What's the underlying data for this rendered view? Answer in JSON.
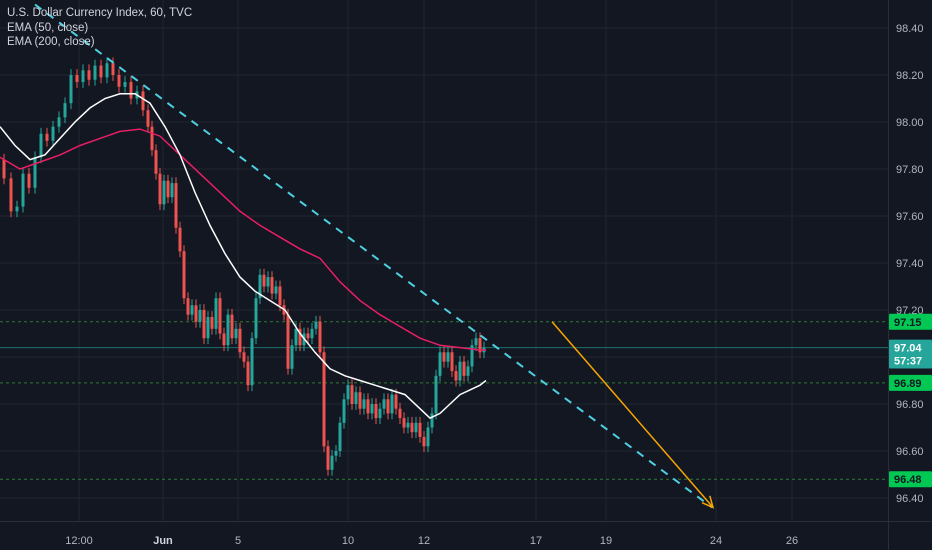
{
  "chart_data": {
    "type": "line",
    "title": "U.S. Dollar Currency Index, 60, TVC",
    "indicators": [
      {
        "name": "EMA (50, close)",
        "color": "#ffffff"
      },
      {
        "name": "EMA (200, close)",
        "color": "#e91e63"
      }
    ],
    "x_ticks": [
      "12:00",
      "Jun",
      "5",
      "10",
      "12",
      "17",
      "19",
      "24",
      "26"
    ],
    "y_ticks": [
      "98.40",
      "98.20",
      "98.00",
      "97.80",
      "97.60",
      "97.40",
      "97.20",
      "97.00",
      "96.80",
      "96.60",
      "96.40"
    ],
    "ylim": [
      96.34,
      98.46
    ],
    "price_markers": [
      {
        "label": "97.15",
        "value": 97.15,
        "bg": "#00c853",
        "fg": "#131722",
        "line": "dashed-green"
      },
      {
        "label": "97.04",
        "value": 97.04,
        "bg": "#26a69a",
        "fg": "#ffffff",
        "line": "solid-teal"
      },
      {
        "label": "57:37",
        "value": 96.985,
        "bg": "#26a69a",
        "fg": "#ffffff",
        "line": "none"
      },
      {
        "label": "96.89",
        "value": 96.89,
        "bg": "#00c853",
        "fg": "#131722",
        "line": "dashed-green"
      },
      {
        "label": "96.48",
        "value": 96.48,
        "bg": "#00c853",
        "fg": "#131722",
        "line": "dashed-green"
      }
    ],
    "price_path": [
      [
        0,
        97.84
      ],
      [
        8,
        97.76
      ],
      [
        14,
        97.62
      ],
      [
        20,
        97.64
      ],
      [
        26,
        97.78
      ],
      [
        32,
        97.72
      ],
      [
        38,
        97.85
      ],
      [
        44,
        97.95
      ],
      [
        50,
        97.92
      ],
      [
        56,
        97.98
      ],
      [
        62,
        98.02
      ],
      [
        68,
        98.08
      ],
      [
        74,
        98.2
      ],
      [
        80,
        98.17
      ],
      [
        86,
        98.22
      ],
      [
        92,
        98.18
      ],
      [
        98,
        98.24
      ],
      [
        104,
        98.19
      ],
      [
        110,
        98.25
      ],
      [
        116,
        98.2
      ],
      [
        122,
        98.15
      ],
      [
        128,
        98.17
      ],
      [
        134,
        98.1
      ],
      [
        140,
        98.13
      ],
      [
        146,
        98.05
      ],
      [
        150,
        97.98
      ],
      [
        154,
        97.88
      ],
      [
        158,
        97.78
      ],
      [
        162,
        97.65
      ],
      [
        166,
        97.75
      ],
      [
        170,
        97.68
      ],
      [
        174,
        97.74
      ],
      [
        178,
        97.55
      ],
      [
        182,
        97.45
      ],
      [
        186,
        97.25
      ],
      [
        190,
        97.18
      ],
      [
        194,
        97.22
      ],
      [
        198,
        97.15
      ],
      [
        202,
        97.2
      ],
      [
        206,
        97.08
      ],
      [
        210,
        97.17
      ],
      [
        214,
        97.12
      ],
      [
        218,
        97.25
      ],
      [
        222,
        97.1
      ],
      [
        226,
        97.05
      ],
      [
        230,
        97.18
      ],
      [
        234,
        97.08
      ],
      [
        238,
        97.12
      ],
      [
        242,
        97.02
      ],
      [
        246,
        96.98
      ],
      [
        250,
        96.88
      ],
      [
        254,
        97.08
      ],
      [
        258,
        97.25
      ],
      [
        262,
        97.35
      ],
      [
        266,
        97.3
      ],
      [
        270,
        97.34
      ],
      [
        274,
        97.27
      ],
      [
        278,
        97.3
      ],
      [
        282,
        97.22
      ],
      [
        286,
        97.18
      ],
      [
        290,
        96.95
      ],
      [
        294,
        97.05
      ],
      [
        298,
        97.12
      ],
      [
        302,
        97.05
      ],
      [
        306,
        97.1
      ],
      [
        310,
        97.08
      ],
      [
        314,
        97.12
      ],
      [
        318,
        97.15
      ],
      [
        322,
        97.02
      ],
      [
        326,
        96.62
      ],
      [
        330,
        96.52
      ],
      [
        334,
        96.58
      ],
      [
        338,
        96.6
      ],
      [
        342,
        96.72
      ],
      [
        346,
        96.82
      ],
      [
        350,
        96.88
      ],
      [
        354,
        96.8
      ],
      [
        358,
        96.85
      ],
      [
        362,
        96.78
      ],
      [
        366,
        96.82
      ],
      [
        370,
        96.76
      ],
      [
        374,
        96.8
      ],
      [
        378,
        96.74
      ],
      [
        382,
        96.78
      ],
      [
        386,
        96.82
      ],
      [
        390,
        96.76
      ],
      [
        394,
        96.84
      ],
      [
        398,
        96.78
      ],
      [
        402,
        96.74
      ],
      [
        406,
        96.7
      ],
      [
        410,
        96.72
      ],
      [
        414,
        96.68
      ],
      [
        418,
        96.72
      ],
      [
        422,
        96.66
      ],
      [
        426,
        96.62
      ],
      [
        430,
        96.7
      ],
      [
        434,
        96.76
      ],
      [
        438,
        96.92
      ],
      [
        442,
        97.02
      ],
      [
        446,
        96.98
      ],
      [
        450,
        97.02
      ],
      [
        454,
        96.94
      ],
      [
        458,
        96.9
      ],
      [
        462,
        96.98
      ],
      [
        466,
        96.92
      ],
      [
        470,
        96.96
      ],
      [
        474,
        97.05
      ],
      [
        478,
        97.08
      ],
      [
        482,
        97.02
      ],
      [
        486,
        97.04
      ]
    ],
    "ema50_path": [
      [
        0,
        97.98
      ],
      [
        15,
        97.9
      ],
      [
        30,
        97.84
      ],
      [
        45,
        97.86
      ],
      [
        60,
        97.93
      ],
      [
        75,
        98.0
      ],
      [
        90,
        98.06
      ],
      [
        105,
        98.1
      ],
      [
        120,
        98.12
      ],
      [
        135,
        98.12
      ],
      [
        150,
        98.08
      ],
      [
        165,
        97.98
      ],
      [
        180,
        97.86
      ],
      [
        195,
        97.7
      ],
      [
        210,
        97.56
      ],
      [
        225,
        97.44
      ],
      [
        240,
        97.34
      ],
      [
        255,
        97.28
      ],
      [
        270,
        97.24
      ],
      [
        285,
        97.2
      ],
      [
        300,
        97.1
      ],
      [
        315,
        97.02
      ],
      [
        330,
        96.95
      ],
      [
        345,
        96.92
      ],
      [
        360,
        96.9
      ],
      [
        375,
        96.88
      ],
      [
        390,
        96.86
      ],
      [
        405,
        96.84
      ],
      [
        420,
        96.78
      ],
      [
        430,
        96.74
      ],
      [
        440,
        96.76
      ],
      [
        450,
        96.8
      ],
      [
        460,
        96.84
      ],
      [
        470,
        96.86
      ],
      [
        480,
        96.88
      ],
      [
        486,
        96.9
      ]
    ],
    "ema200_path": [
      [
        0,
        97.85
      ],
      [
        20,
        97.8
      ],
      [
        40,
        97.83
      ],
      [
        60,
        97.86
      ],
      [
        80,
        97.9
      ],
      [
        100,
        97.93
      ],
      [
        120,
        97.96
      ],
      [
        140,
        97.97
      ],
      [
        160,
        97.94
      ],
      [
        180,
        97.86
      ],
      [
        200,
        97.78
      ],
      [
        220,
        97.7
      ],
      [
        240,
        97.62
      ],
      [
        260,
        97.56
      ],
      [
        280,
        97.51
      ],
      [
        300,
        97.46
      ],
      [
        320,
        97.42
      ],
      [
        340,
        97.32
      ],
      [
        360,
        97.24
      ],
      [
        380,
        97.18
      ],
      [
        400,
        97.13
      ],
      [
        420,
        97.08
      ],
      [
        440,
        97.05
      ],
      [
        460,
        97.04
      ],
      [
        480,
        97.03
      ],
      [
        486,
        97.03
      ]
    ],
    "trendline": {
      "x1": 35,
      "v1": 98.5,
      "x2": 712,
      "v2": 96.36,
      "color": "#4dd0e1",
      "style": "dashed"
    },
    "arrow": {
      "x1": 552,
      "v1": 97.15,
      "x2": 713,
      "v2": 96.36,
      "color": "#f7a600"
    },
    "colors": {
      "up": "#26a69a",
      "down": "#ef5350",
      "background": "#131722",
      "grid": "#1f2430"
    }
  }
}
